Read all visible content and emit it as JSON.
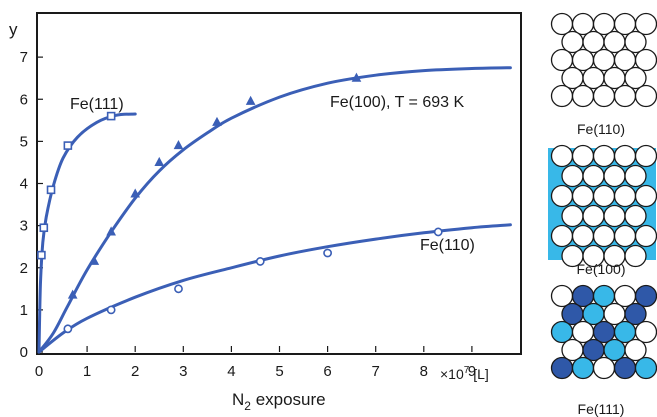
{
  "chart_data": {
    "type": "line",
    "ylabel": "y",
    "xlabel_base": "N",
    "xlabel_sub": "2",
    "xlabel_rest": " exposure",
    "x_unit_base": "×10",
    "x_unit_exp": "7",
    "x_unit_tail": " [L]",
    "xlim": [
      0,
      10
    ],
    "ylim": [
      0,
      8
    ],
    "x_ticks": [
      0,
      1,
      2,
      3,
      4,
      5,
      6,
      7,
      8,
      9
    ],
    "y_ticks": [
      0,
      1,
      2,
      3,
      4,
      5,
      6,
      7
    ],
    "grid": false,
    "colors": {
      "curve": "#3b5fb6",
      "axis": "#1a1a1a"
    },
    "series": [
      {
        "name": "Fe(111)",
        "marker": "square",
        "points": [
          [
            0.05,
            2.3
          ],
          [
            0.1,
            2.95
          ],
          [
            0.25,
            3.85
          ],
          [
            0.6,
            4.9
          ],
          [
            1.5,
            5.6
          ]
        ],
        "curve": [
          [
            0,
            0
          ],
          [
            0.03,
            1.6
          ],
          [
            0.08,
            2.6
          ],
          [
            0.15,
            3.2
          ],
          [
            0.3,
            3.95
          ],
          [
            0.5,
            4.6
          ],
          [
            0.8,
            5.1
          ],
          [
            1.2,
            5.45
          ],
          [
            1.6,
            5.62
          ],
          [
            2.0,
            5.65
          ]
        ]
      },
      {
        "name": "Fe(100), T = 693 K",
        "marker": "triangle",
        "points": [
          [
            0.7,
            1.35
          ],
          [
            1.15,
            2.15
          ],
          [
            1.5,
            2.85
          ],
          [
            2.0,
            3.75
          ],
          [
            2.5,
            4.5
          ],
          [
            2.9,
            4.9
          ],
          [
            3.7,
            5.45
          ],
          [
            4.4,
            5.95
          ],
          [
            6.6,
            6.5
          ]
        ],
        "curve": [
          [
            0,
            0
          ],
          [
            0.3,
            0.45
          ],
          [
            0.6,
            1.1
          ],
          [
            1.0,
            1.95
          ],
          [
            1.5,
            2.85
          ],
          [
            2.0,
            3.65
          ],
          [
            2.5,
            4.3
          ],
          [
            3.0,
            4.8
          ],
          [
            3.5,
            5.2
          ],
          [
            4.0,
            5.55
          ],
          [
            5.0,
            6.05
          ],
          [
            6.0,
            6.38
          ],
          [
            7.0,
            6.57
          ],
          [
            8.0,
            6.68
          ],
          [
            9.0,
            6.73
          ],
          [
            9.8,
            6.75
          ]
        ]
      },
      {
        "name": "Fe(110)",
        "marker": "circle",
        "points": [
          [
            0.6,
            0.55
          ],
          [
            1.5,
            1.0
          ],
          [
            2.9,
            1.5
          ],
          [
            4.6,
            2.15
          ],
          [
            6.0,
            2.35
          ],
          [
            8.3,
            2.85
          ]
        ],
        "curve": [
          [
            0,
            0
          ],
          [
            0.5,
            0.45
          ],
          [
            1.0,
            0.8
          ],
          [
            2.0,
            1.3
          ],
          [
            3.0,
            1.7
          ],
          [
            4.0,
            2.0
          ],
          [
            5.0,
            2.28
          ],
          [
            6.0,
            2.5
          ],
          [
            7.0,
            2.68
          ],
          [
            8.0,
            2.83
          ],
          [
            9.0,
            2.95
          ],
          [
            9.8,
            3.02
          ]
        ]
      }
    ]
  },
  "lattices": [
    {
      "label": "Fe(110)",
      "colors": {
        "white": "#ffffff",
        "light": "#38b8e8",
        "dark": "#2f58a8"
      }
    },
    {
      "label": "Fe(100)"
    },
    {
      "label": "Fe(111)"
    }
  ]
}
